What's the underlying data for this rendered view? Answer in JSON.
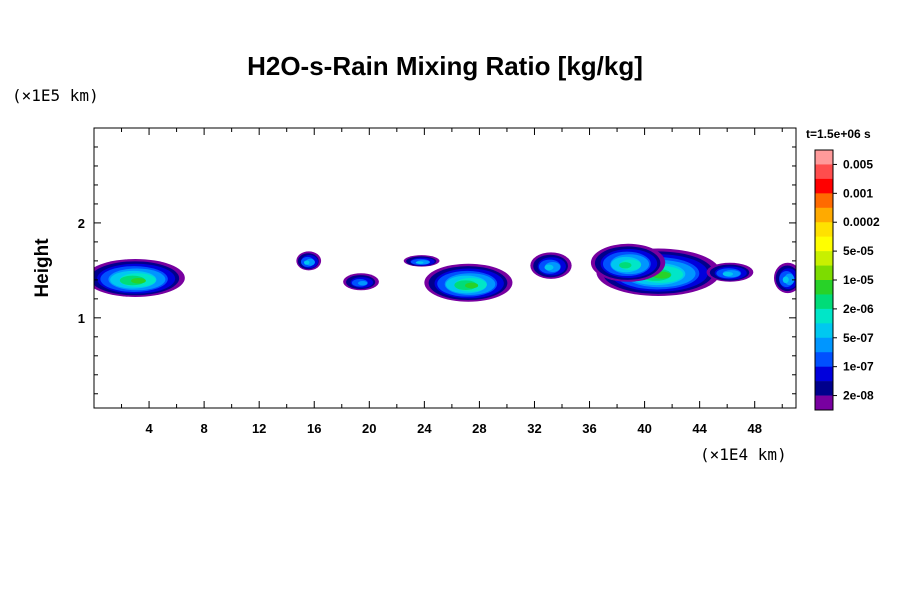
{
  "chart_data": {
    "type": "heatmap",
    "title": "H2O-s-Rain Mixing Ratio [kg/kg]",
    "time_label": "t=1.5e+06 s",
    "xlabel": "",
    "x_unit": "(×1E4 km)",
    "ylabel": "Height",
    "y_unit": "(×1E5 km)",
    "xlim": [
      0,
      51
    ],
    "ylim": [
      0.05,
      3.0
    ],
    "x_ticks": [
      4,
      8,
      12,
      16,
      20,
      24,
      28,
      32,
      36,
      40,
      44,
      48
    ],
    "y_ticks": [
      1,
      2
    ],
    "x_minor_step": 2,
    "y_minor_step": 0.2,
    "colorbar": {
      "labels": [
        "0.005",
        "0.001",
        "0.0002",
        "5e-05",
        "1e-05",
        "2e-06",
        "5e-07",
        "1e-07",
        "2e-08"
      ],
      "colors": [
        "#ff9a9a",
        "#ff4d4d",
        "#ff0000",
        "#ff6a00",
        "#ffaa00",
        "#ffe100",
        "#ffff00",
        "#c8f000",
        "#7ddc00",
        "#28d228",
        "#00dc78",
        "#00e6c8",
        "#00c8f0",
        "#0096ff",
        "#0050ff",
        "#0000dc",
        "#00008c",
        "#7800a0"
      ]
    },
    "cells": [
      {
        "x": 3,
        "y": 1.42,
        "rx": 3.6,
        "ry": 0.2,
        "level": 1.0
      },
      {
        "x": 15.6,
        "y": 1.6,
        "rx": 0.9,
        "ry": 0.1,
        "level": 0.45
      },
      {
        "x": 19.4,
        "y": 1.38,
        "rx": 1.3,
        "ry": 0.09,
        "level": 0.4
      },
      {
        "x": 27.2,
        "y": 1.37,
        "rx": 3.2,
        "ry": 0.2,
        "level": 1.0
      },
      {
        "x": 23.8,
        "y": 1.6,
        "rx": 1.3,
        "ry": 0.06,
        "level": 0.45
      },
      {
        "x": 33.2,
        "y": 1.55,
        "rx": 1.5,
        "ry": 0.14,
        "level": 0.5
      },
      {
        "x": 41.0,
        "y": 1.48,
        "rx": 4.5,
        "ry": 0.25,
        "level": 0.95
      },
      {
        "x": 38.8,
        "y": 1.58,
        "rx": 2.7,
        "ry": 0.2,
        "level": 0.85
      },
      {
        "x": 46.2,
        "y": 1.48,
        "rx": 1.7,
        "ry": 0.1,
        "level": 0.45
      },
      {
        "x": 50.4,
        "y": 1.42,
        "rx": 1.0,
        "ry": 0.16,
        "level": 0.45
      }
    ]
  }
}
